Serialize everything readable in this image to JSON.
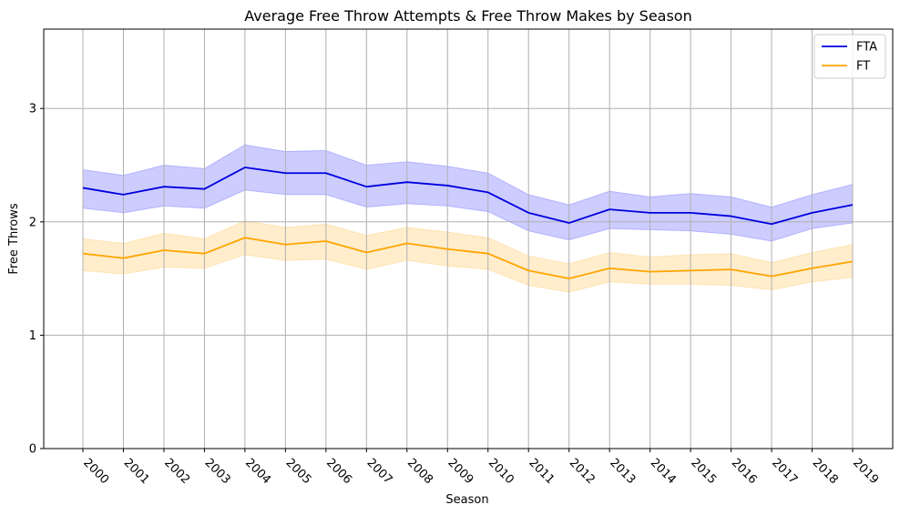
{
  "chart_data": {
    "type": "line",
    "title": "Average Free Throw Attempts & Free Throw Makes by Season",
    "xlabel": "Season",
    "ylabel": "Free Throws",
    "categories": [
      "2000",
      "2001",
      "2002",
      "2003",
      "2004",
      "2005",
      "2006",
      "2007",
      "2008",
      "2009",
      "2010",
      "2011",
      "2012",
      "2013",
      "2014",
      "2015",
      "2016",
      "2017",
      "2018",
      "2019"
    ],
    "ylim": [
      0,
      3.7
    ],
    "yticks": [
      "0",
      "1",
      "2",
      "3"
    ],
    "grid": true,
    "legend_position": "top-right",
    "series": [
      {
        "name": "FTA",
        "color": "#0000dd",
        "band_color": "#0000ff",
        "values": [
          2.3,
          2.24,
          2.31,
          2.29,
          2.48,
          2.43,
          2.43,
          2.31,
          2.35,
          2.32,
          2.26,
          2.08,
          1.99,
          2.11,
          2.08,
          2.08,
          2.05,
          1.98,
          2.08,
          2.15
        ],
        "upper": [
          2.46,
          2.41,
          2.5,
          2.47,
          2.68,
          2.62,
          2.63,
          2.5,
          2.53,
          2.49,
          2.43,
          2.24,
          2.15,
          2.27,
          2.22,
          2.25,
          2.22,
          2.13,
          2.24,
          2.33
        ],
        "lower": [
          2.12,
          2.08,
          2.14,
          2.12,
          2.28,
          2.24,
          2.24,
          2.13,
          2.16,
          2.14,
          2.09,
          1.92,
          1.84,
          1.94,
          1.93,
          1.92,
          1.89,
          1.83,
          1.94,
          1.99
        ]
      },
      {
        "name": "FT",
        "color": "#ffa500",
        "band_color": "#ffa500",
        "values": [
          1.72,
          1.68,
          1.75,
          1.72,
          1.86,
          1.8,
          1.83,
          1.73,
          1.81,
          1.76,
          1.72,
          1.57,
          1.5,
          1.59,
          1.56,
          1.57,
          1.58,
          1.52,
          1.59,
          1.65
        ],
        "upper": [
          1.85,
          1.81,
          1.9,
          1.85,
          2.01,
          1.95,
          1.98,
          1.88,
          1.95,
          1.91,
          1.86,
          1.7,
          1.63,
          1.73,
          1.69,
          1.71,
          1.72,
          1.64,
          1.73,
          1.8
        ],
        "lower": [
          1.57,
          1.54,
          1.6,
          1.59,
          1.71,
          1.66,
          1.67,
          1.58,
          1.66,
          1.61,
          1.58,
          1.44,
          1.38,
          1.47,
          1.45,
          1.45,
          1.44,
          1.4,
          1.47,
          1.51
        ]
      }
    ]
  }
}
